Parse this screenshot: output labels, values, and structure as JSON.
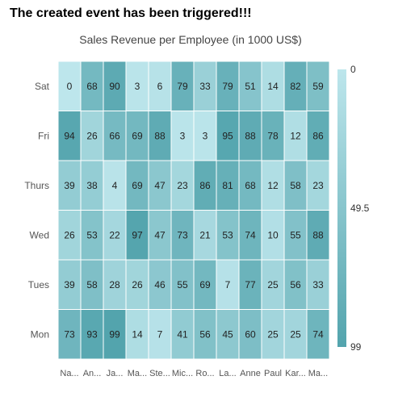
{
  "event_message": "The created event has been triggered!!!",
  "chart_data": {
    "type": "heatmap",
    "title": "Sales Revenue per Employee (in 1000 US$)",
    "x_categories": [
      "Na...",
      "An...",
      "Ja...",
      "Ma...",
      "Ste...",
      "Mic...",
      "Ro...",
      "La...",
      "Anne",
      "Paul",
      "Kar...",
      "Ma..."
    ],
    "y_categories": [
      "Sat",
      "Fri",
      "Thurs",
      "Wed",
      "Tues",
      "Mon"
    ],
    "values": [
      [
        0,
        68,
        90,
        3,
        6,
        79,
        33,
        79,
        51,
        14,
        82,
        59
      ],
      [
        94,
        26,
        66,
        69,
        88,
        3,
        3,
        95,
        88,
        78,
        12,
        86
      ],
      [
        39,
        38,
        4,
        69,
        47,
        23,
        86,
        81,
        68,
        12,
        58,
        23
      ],
      [
        26,
        53,
        22,
        97,
        47,
        73,
        21,
        53,
        74,
        10,
        55,
        88
      ],
      [
        39,
        58,
        28,
        26,
        46,
        55,
        69,
        7,
        77,
        25,
        56,
        33
      ],
      [
        73,
        93,
        99,
        14,
        7,
        41,
        56,
        45,
        60,
        25,
        25,
        74
      ]
    ],
    "color_scale": {
      "min": 0,
      "max": 99,
      "min_color": "#bde6ec",
      "max_color": "#53a4ad"
    },
    "legend": {
      "placement": "right",
      "labels": [
        "0",
        "49.5",
        "99"
      ]
    }
  }
}
